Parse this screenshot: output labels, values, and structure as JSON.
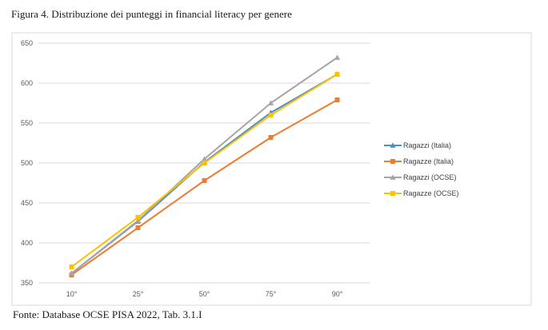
{
  "figure": {
    "title": "Figura 4. Distribuzione dei punteggi in financial literacy per genere",
    "source": "Fonte: Database OCSE PISA 2022, Tab. 3.1.I"
  },
  "chart_data": {
    "type": "line",
    "title": "",
    "xlabel": "",
    "ylabel": "",
    "categories": [
      "10°",
      "25°",
      "50°",
      "75°",
      "90°"
    ],
    "ylim": [
      350,
      650
    ],
    "yticks": [
      350,
      400,
      450,
      500,
      550,
      600,
      650
    ],
    "grid": "horizontal",
    "legend_position": "right",
    "series": [
      {
        "name": "Ragazzi (Italia)",
        "color": "#4a8fc9",
        "marker": "triangle",
        "values": [
          362,
          427,
          501,
          563,
          611
        ]
      },
      {
        "name": "Ragazze (Italia)",
        "color": "#ed7d31",
        "marker": "square",
        "values": [
          360,
          419,
          478,
          532,
          579
        ]
      },
      {
        "name": "Ragazzi (OCSE)",
        "color": "#a5a5a5",
        "marker": "triangle",
        "values": [
          362,
          428,
          505,
          575,
          632
        ]
      },
      {
        "name": "Ragazze (OCSE)",
        "color": "#ffc000",
        "marker": "square",
        "values": [
          370,
          432,
          500,
          560,
          611
        ]
      }
    ]
  }
}
